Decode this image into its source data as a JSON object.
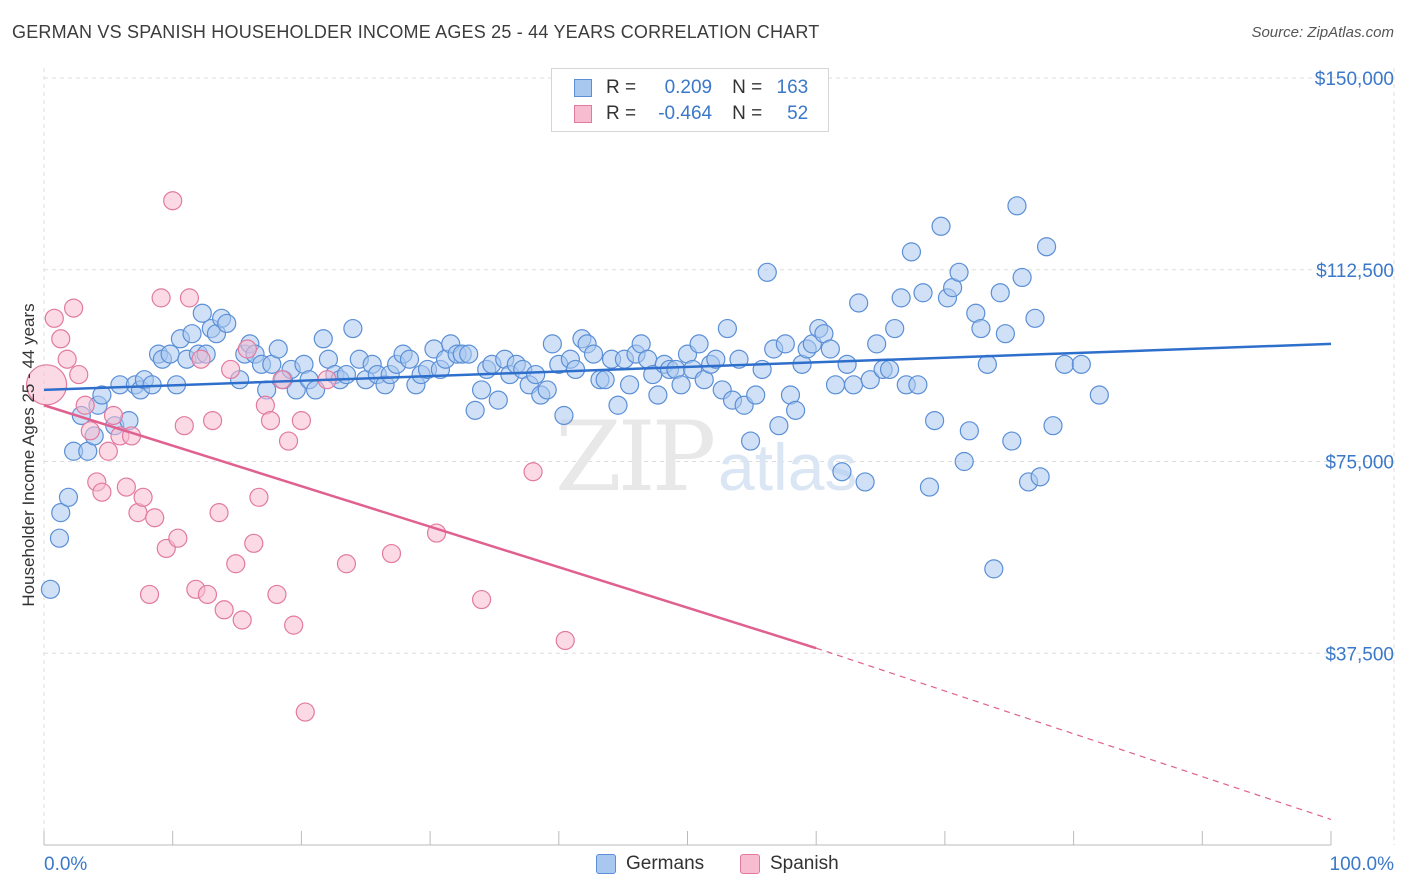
{
  "header": {
    "title": "GERMAN VS SPANISH HOUSEHOLDER INCOME AGES 25 - 44 YEARS CORRELATION CHART",
    "source": "Source: ZipAtlas.com"
  },
  "legend": {
    "rows": [
      {
        "r_label": "R =",
        "r_value": "0.209",
        "n_label": "N =",
        "n_value": "163",
        "color": "#a9c8f0",
        "border": "#5b8fd6"
      },
      {
        "r_label": "R =",
        "r_value": "-0.464",
        "n_label": "N =",
        "n_value": "52",
        "color": "#f7bcd0",
        "border": "#e27aa0"
      }
    ]
  },
  "bottom_legend": {
    "germans": "Germans",
    "spanish": "Spanish"
  },
  "watermark": {
    "zip": "ZIP",
    "atlas": "atlas"
  },
  "colors": {
    "blue_fill": "#a9c8f0",
    "blue_stroke": "#5b8fd6",
    "blue_line": "#2f6fcc",
    "pink_fill": "#f7bcd0",
    "pink_stroke": "#e27aa0",
    "pink_line": "#e0608f",
    "axis_text": "#3b78c9",
    "grid": "#dddddd"
  },
  "chart_data": {
    "type": "scatter",
    "title": "GERMAN VS SPANISH HOUSEHOLDER INCOME AGES 25 - 44 YEARS CORRELATION CHART",
    "xlabel": "",
    "ylabel": "Householder Income Ages 25 - 44 years",
    "xlim": [
      0,
      100
    ],
    "ylim": [
      0,
      155000
    ],
    "x_tick_labels": [
      "0.0%",
      "100.0%"
    ],
    "y_ticks": [
      37500,
      75000,
      112500,
      150000
    ],
    "y_tick_labels": [
      "$37,500",
      "$75,000",
      "$112,500",
      "$150,000"
    ],
    "grid": true,
    "legend_position": "top-center",
    "series": [
      {
        "name": "Germans",
        "r": 0.209,
        "n": 163,
        "trend": {
          "x": [
            0,
            100
          ],
          "y": [
            89000,
            98000
          ],
          "dashed_from": null
        },
        "points": [
          [
            0.5,
            50000
          ],
          [
            1.2,
            60000
          ],
          [
            1.3,
            65000
          ],
          [
            1.9,
            68000
          ],
          [
            2.3,
            77000
          ],
          [
            2.9,
            84000
          ],
          [
            3.4,
            77000
          ],
          [
            3.9,
            80000
          ],
          [
            4.2,
            86000
          ],
          [
            4.5,
            88000
          ],
          [
            5.5,
            82000
          ],
          [
            5.9,
            90000
          ],
          [
            6.6,
            83000
          ],
          [
            7.1,
            90000
          ],
          [
            7.5,
            89000
          ],
          [
            7.8,
            91000
          ],
          [
            8.4,
            90000
          ],
          [
            8.9,
            96000
          ],
          [
            9.2,
            95000
          ],
          [
            9.8,
            96000
          ],
          [
            10.3,
            90000
          ],
          [
            10.6,
            99000
          ],
          [
            11.1,
            95000
          ],
          [
            11.5,
            100000
          ],
          [
            12.0,
            96000
          ],
          [
            12.3,
            104000
          ],
          [
            12.6,
            96000
          ],
          [
            13.0,
            101000
          ],
          [
            13.4,
            100000
          ],
          [
            13.8,
            103000
          ],
          [
            14.2,
            102000
          ],
          [
            15.2,
            91000
          ],
          [
            15.6,
            96000
          ],
          [
            16.0,
            98000
          ],
          [
            16.4,
            96000
          ],
          [
            16.9,
            94000
          ],
          [
            17.3,
            89000
          ],
          [
            17.7,
            94000
          ],
          [
            18.2,
            97000
          ],
          [
            18.6,
            91000
          ],
          [
            19.2,
            93000
          ],
          [
            19.6,
            89000
          ],
          [
            20.2,
            94000
          ],
          [
            20.6,
            91000
          ],
          [
            21.1,
            89000
          ],
          [
            21.7,
            99000
          ],
          [
            22.1,
            95000
          ],
          [
            22.6,
            92000
          ],
          [
            23.0,
            91000
          ],
          [
            23.5,
            92000
          ],
          [
            24.0,
            101000
          ],
          [
            24.5,
            95000
          ],
          [
            25.0,
            91000
          ],
          [
            25.5,
            94000
          ],
          [
            25.9,
            92000
          ],
          [
            26.5,
            90000
          ],
          [
            26.9,
            92000
          ],
          [
            27.4,
            94000
          ],
          [
            27.9,
            96000
          ],
          [
            28.4,
            95000
          ],
          [
            28.9,
            90000
          ],
          [
            29.3,
            92000
          ],
          [
            29.8,
            93000
          ],
          [
            30.3,
            97000
          ],
          [
            30.8,
            93000
          ],
          [
            31.2,
            95000
          ],
          [
            31.6,
            98000
          ],
          [
            32.1,
            96000
          ],
          [
            32.5,
            96000
          ],
          [
            33.0,
            96000
          ],
          [
            33.5,
            85000
          ],
          [
            34.0,
            89000
          ],
          [
            34.4,
            93000
          ],
          [
            34.8,
            94000
          ],
          [
            35.3,
            87000
          ],
          [
            35.8,
            95000
          ],
          [
            36.2,
            92000
          ],
          [
            36.7,
            94000
          ],
          [
            37.2,
            93000
          ],
          [
            37.7,
            90000
          ],
          [
            38.2,
            92000
          ],
          [
            38.6,
            88000
          ],
          [
            39.1,
            89000
          ],
          [
            39.5,
            98000
          ],
          [
            40.0,
            94000
          ],
          [
            40.4,
            84000
          ],
          [
            40.9,
            95000
          ],
          [
            41.3,
            93000
          ],
          [
            41.8,
            99000
          ],
          [
            42.2,
            98000
          ],
          [
            42.7,
            96000
          ],
          [
            43.2,
            91000
          ],
          [
            43.6,
            91000
          ],
          [
            44.1,
            95000
          ],
          [
            44.6,
            86000
          ],
          [
            45.1,
            95000
          ],
          [
            45.5,
            90000
          ],
          [
            46.0,
            96000
          ],
          [
            46.4,
            98000
          ],
          [
            46.9,
            95000
          ],
          [
            47.3,
            92000
          ],
          [
            47.7,
            88000
          ],
          [
            48.2,
            94000
          ],
          [
            48.6,
            93000
          ],
          [
            49.1,
            93000
          ],
          [
            49.5,
            90000
          ],
          [
            50.0,
            96000
          ],
          [
            50.4,
            93000
          ],
          [
            50.9,
            98000
          ],
          [
            51.3,
            91000
          ],
          [
            51.8,
            94000
          ],
          [
            52.2,
            95000
          ],
          [
            52.7,
            89000
          ],
          [
            53.1,
            101000
          ],
          [
            53.5,
            87000
          ],
          [
            54.0,
            95000
          ],
          [
            54.4,
            86000
          ],
          [
            54.9,
            79000
          ],
          [
            55.3,
            88000
          ],
          [
            55.8,
            93000
          ],
          [
            56.2,
            112000
          ],
          [
            56.7,
            97000
          ],
          [
            57.1,
            82000
          ],
          [
            57.6,
            98000
          ],
          [
            58.0,
            88000
          ],
          [
            58.4,
            85000
          ],
          [
            58.9,
            94000
          ],
          [
            59.3,
            97000
          ],
          [
            59.7,
            98000
          ],
          [
            60.2,
            101000
          ],
          [
            60.6,
            100000
          ],
          [
            61.1,
            97000
          ],
          [
            61.5,
            90000
          ],
          [
            62.0,
            73000
          ],
          [
            62.4,
            94000
          ],
          [
            62.9,
            90000
          ],
          [
            63.3,
            106000
          ],
          [
            63.8,
            71000
          ],
          [
            64.2,
            91000
          ],
          [
            64.7,
            98000
          ],
          [
            65.2,
            93000
          ],
          [
            65.7,
            93000
          ],
          [
            66.1,
            101000
          ],
          [
            66.6,
            107000
          ],
          [
            67.0,
            90000
          ],
          [
            67.4,
            116000
          ],
          [
            67.9,
            90000
          ],
          [
            68.3,
            108000
          ],
          [
            68.8,
            70000
          ],
          [
            69.2,
            83000
          ],
          [
            69.7,
            121000
          ],
          [
            70.2,
            107000
          ],
          [
            70.6,
            109000
          ],
          [
            71.1,
            112000
          ],
          [
            71.5,
            75000
          ],
          [
            71.9,
            81000
          ],
          [
            72.4,
            104000
          ],
          [
            72.8,
            101000
          ],
          [
            73.3,
            94000
          ],
          [
            73.8,
            54000
          ],
          [
            74.3,
            108000
          ],
          [
            74.7,
            100000
          ],
          [
            75.2,
            79000
          ],
          [
            75.6,
            125000
          ],
          [
            76.0,
            111000
          ],
          [
            76.5,
            71000
          ],
          [
            77.0,
            103000
          ],
          [
            77.4,
            72000
          ],
          [
            77.9,
            117000
          ],
          [
            78.4,
            82000
          ],
          [
            79.3,
            94000
          ],
          [
            80.6,
            94000
          ],
          [
            82.0,
            88000
          ]
        ]
      },
      {
        "name": "Spanish",
        "r": -0.464,
        "n": 52,
        "trend": {
          "x": [
            0,
            60,
            100
          ],
          "y": [
            86000,
            38500,
            5000
          ],
          "dashed_from": 60
        },
        "points": [
          [
            0.2,
            90000
          ],
          [
            0.8,
            103000
          ],
          [
            1.3,
            99000
          ],
          [
            1.8,
            95000
          ],
          [
            2.3,
            105000
          ],
          [
            2.7,
            92000
          ],
          [
            3.2,
            86000
          ],
          [
            3.6,
            81000
          ],
          [
            4.1,
            71000
          ],
          [
            4.5,
            69000
          ],
          [
            5.0,
            77000
          ],
          [
            5.4,
            84000
          ],
          [
            5.9,
            80000
          ],
          [
            6.4,
            70000
          ],
          [
            6.8,
            80000
          ],
          [
            7.3,
            65000
          ],
          [
            7.7,
            68000
          ],
          [
            8.2,
            49000
          ],
          [
            8.6,
            64000
          ],
          [
            9.1,
            107000
          ],
          [
            9.5,
            58000
          ],
          [
            10.0,
            126000
          ],
          [
            10.4,
            60000
          ],
          [
            10.9,
            82000
          ],
          [
            11.3,
            107000
          ],
          [
            11.8,
            50000
          ],
          [
            12.2,
            95000
          ],
          [
            12.7,
            49000
          ],
          [
            13.1,
            83000
          ],
          [
            13.6,
            65000
          ],
          [
            14.0,
            46000
          ],
          [
            14.5,
            93000
          ],
          [
            14.9,
            55000
          ],
          [
            15.4,
            44000
          ],
          [
            15.8,
            97000
          ],
          [
            16.3,
            59000
          ],
          [
            16.7,
            68000
          ],
          [
            17.2,
            86000
          ],
          [
            17.6,
            83000
          ],
          [
            18.1,
            49000
          ],
          [
            18.5,
            91000
          ],
          [
            19.0,
            79000
          ],
          [
            19.4,
            43000
          ],
          [
            20.0,
            83000
          ],
          [
            20.3,
            26000
          ],
          [
            23.5,
            55000
          ],
          [
            27.0,
            57000
          ],
          [
            30.5,
            61000
          ],
          [
            34.0,
            48000
          ],
          [
            38.0,
            73000
          ],
          [
            40.5,
            40000
          ],
          [
            22.0,
            91000
          ]
        ]
      }
    ]
  }
}
